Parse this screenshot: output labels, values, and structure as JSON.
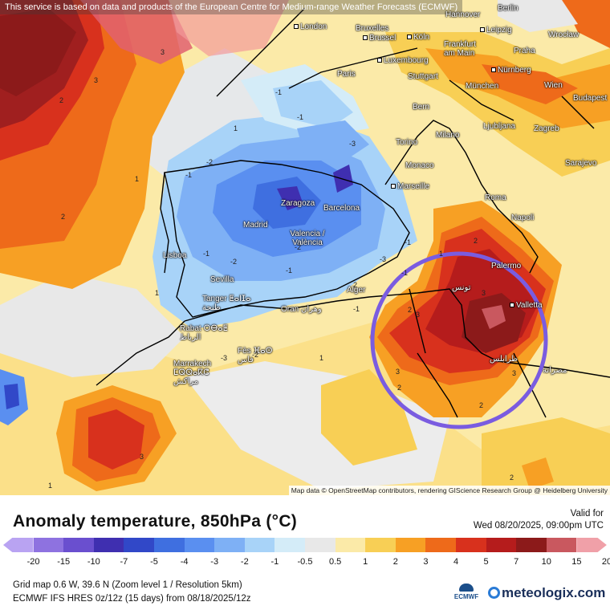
{
  "banner": "This service is based on data and products of the European Centre for Medium-range Weather Forecasts (ECMWF)",
  "attribution": "Map data © OpenStreetMap contributors, rendering GIScience Research Group @ Heidelberg University",
  "title": "Anomaly temperature, 850hPa (°C)",
  "valid_label": "Valid for",
  "valid_time": "Wed 08/20/2025, 09:00pm UTC",
  "grid_info": "Grid map 0.6 W, 39.6 N (Zoom level 1 / Resolution 5km)",
  "model_info": "ECMWF IFS HRES 0z/12z (15 days) from 08/18/2025/12z",
  "ecmwf_logo": "ECMWF",
  "brand": "meteologix.com",
  "legend": {
    "ticks": [
      "-20",
      "-15",
      "-10",
      "-7",
      "-5",
      "-4",
      "-3",
      "-2",
      "-1",
      "-0.5",
      "0.5",
      "1",
      "2",
      "3",
      "4",
      "5",
      "7",
      "10",
      "15",
      "20"
    ],
    "colors": [
      "#b9a3f2",
      "#8e72e0",
      "#6a4fcf",
      "#3f2fb0",
      "#3148c8",
      "#3f6fe0",
      "#5a8ff0",
      "#7eb0f5",
      "#a8d3f8",
      "#d4ecf8",
      "#e8e8e8",
      "#fbeaa8",
      "#f8cf55",
      "#f7a024",
      "#ee6a1a",
      "#d8311d",
      "#b51c1c",
      "#8c1a1a",
      "#c9585f",
      "#f0a0a8"
    ]
  },
  "cities": [
    {
      "id": "london",
      "name": "London"
    },
    {
      "id": "bruxelles",
      "name": "Bruxelles"
    },
    {
      "id": "brussel",
      "name": "Brussel"
    },
    {
      "id": "koln",
      "name": "Köln"
    },
    {
      "id": "frankfurt",
      "name": "Frankfurt am Main"
    },
    {
      "id": "leipzig",
      "name": "Leipzig"
    },
    {
      "id": "berlin",
      "name": "Berlin"
    },
    {
      "id": "hannover",
      "name": "Hannover"
    },
    {
      "id": "wroclaw",
      "name": "Wrocław"
    },
    {
      "id": "praha",
      "name": "Praha"
    },
    {
      "id": "luxembourg",
      "name": "Luxembourg"
    },
    {
      "id": "paris",
      "name": "Paris"
    },
    {
      "id": "stuttgart",
      "name": "Stuttgart"
    },
    {
      "id": "nurnberg",
      "name": "Nürnberg"
    },
    {
      "id": "munchen",
      "name": "München"
    },
    {
      "id": "wien",
      "name": "Wien"
    },
    {
      "id": "budapest",
      "name": "Budapest"
    },
    {
      "id": "bern",
      "name": "Bern"
    },
    {
      "id": "ljubljana",
      "name": "Ljubljana"
    },
    {
      "id": "zagreb",
      "name": "Zagreb"
    },
    {
      "id": "torino",
      "name": "Torino"
    },
    {
      "id": "milano",
      "name": "Milano"
    },
    {
      "id": "monaco",
      "name": "Monaco"
    },
    {
      "id": "marseille",
      "name": "Marseille"
    },
    {
      "id": "sarajevo",
      "name": "Sarajevo"
    },
    {
      "id": "roma",
      "name": "Roma"
    },
    {
      "id": "napoli",
      "name": "Napoli"
    },
    {
      "id": "palermo",
      "name": "Palermo"
    },
    {
      "id": "zaragoza",
      "name": "Zaragoza"
    },
    {
      "id": "barcelona",
      "name": "Barcelona"
    },
    {
      "id": "madrid",
      "name": "Madrid"
    },
    {
      "id": "valencia",
      "name": "Valencia / València"
    },
    {
      "id": "lisboa",
      "name": "Lisboa"
    },
    {
      "id": "sevilla",
      "name": "Sevilla"
    },
    {
      "id": "tanger",
      "name": "Tanger ⵟⴰⵏⵊⴰ طنجة"
    },
    {
      "id": "oran",
      "name": "Oran وهران"
    },
    {
      "id": "alger",
      "name": "Alger"
    },
    {
      "id": "tunis",
      "name": "تونس"
    },
    {
      "id": "valletta",
      "name": "Valletta"
    },
    {
      "id": "rabat",
      "name": "Rabat ⵔⴱⴰⵟ الرباط"
    },
    {
      "id": "fes",
      "name": "Fès ⴼⴰⵙ فاس"
    },
    {
      "id": "marrakech",
      "name": "Marrakech ⵎⵕⵕⴰⴽⵛ مراكش"
    },
    {
      "id": "tripoli",
      "name": "طرابلس"
    },
    {
      "id": "misrata",
      "name": "مصراتة"
    }
  ],
  "contour_labels": [
    "3",
    "3",
    "2",
    "1",
    "2",
    "1",
    "-1",
    "-2",
    "-1",
    "-3",
    "-2",
    "-1",
    "1",
    "-1",
    "-2",
    "-3",
    "-1",
    "-2",
    "-3",
    "-1",
    "1",
    "2",
    "3",
    "3",
    "2",
    "2",
    "3",
    "1",
    "2",
    "3",
    "1",
    "2",
    "2",
    "3",
    "-1",
    "-1"
  ]
}
